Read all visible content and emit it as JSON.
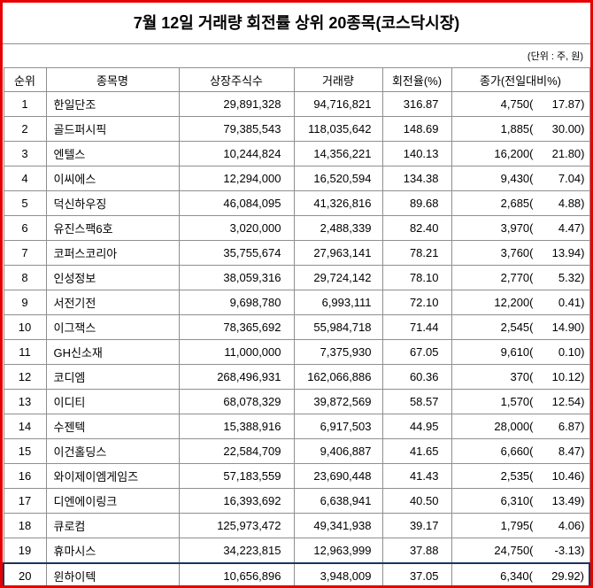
{
  "unit_note": "(단위 : 주, 원)",
  "colors": {
    "frame_border": "#e60000",
    "grid_line": "#8f8f8f",
    "selection_border": "#17375d",
    "text": "#000000",
    "background": "#ffffff"
  },
  "selection": {
    "selected_rank": 20
  },
  "chart_data": {
    "type": "table",
    "title": "7월 12일 거래량 회전률 상위 20종목(코스닥시장)",
    "columns": [
      "순위",
      "종목명",
      "상장주식수",
      "거래량",
      "회전율(%)",
      "종가(전일대비%)"
    ],
    "rows": [
      {
        "rank": 1,
        "name": "한일단조",
        "shares": "29,891,328",
        "volume": "94,716,821",
        "turnover": "316.87",
        "close": "4,750",
        "change": "17.87"
      },
      {
        "rank": 2,
        "name": "골드퍼시픽",
        "shares": "79,385,543",
        "volume": "118,035,642",
        "turnover": "148.69",
        "close": "1,885",
        "change": "30.00"
      },
      {
        "rank": 3,
        "name": "엔텔스",
        "shares": "10,244,824",
        "volume": "14,356,221",
        "turnover": "140.13",
        "close": "16,200",
        "change": "21.80"
      },
      {
        "rank": 4,
        "name": "이씨에스",
        "shares": "12,294,000",
        "volume": "16,520,594",
        "turnover": "134.38",
        "close": "9,430",
        "change": "7.04"
      },
      {
        "rank": 5,
        "name": "덕신하우징",
        "shares": "46,084,095",
        "volume": "41,326,816",
        "turnover": "89.68",
        "close": "2,685",
        "change": "4.88"
      },
      {
        "rank": 6,
        "name": "유진스팩6호",
        "shares": "3,020,000",
        "volume": "2,488,339",
        "turnover": "82.40",
        "close": "3,970",
        "change": "4.47"
      },
      {
        "rank": 7,
        "name": "코퍼스코리아",
        "shares": "35,755,674",
        "volume": "27,963,141",
        "turnover": "78.21",
        "close": "3,760",
        "change": "13.94"
      },
      {
        "rank": 8,
        "name": "인성정보",
        "shares": "38,059,316",
        "volume": "29,724,142",
        "turnover": "78.10",
        "close": "2,770",
        "change": "5.32"
      },
      {
        "rank": 9,
        "name": "서전기전",
        "shares": "9,698,780",
        "volume": "6,993,111",
        "turnover": "72.10",
        "close": "12,200",
        "change": "0.41"
      },
      {
        "rank": 10,
        "name": "이그잭스",
        "shares": "78,365,692",
        "volume": "55,984,718",
        "turnover": "71.44",
        "close": "2,545",
        "change": "14.90"
      },
      {
        "rank": 11,
        "name": "GH신소재",
        "shares": "11,000,000",
        "volume": "7,375,930",
        "turnover": "67.05",
        "close": "9,610",
        "change": "0.10"
      },
      {
        "rank": 12,
        "name": "코디엠",
        "shares": "268,496,931",
        "volume": "162,066,886",
        "turnover": "60.36",
        "close": "370",
        "change": "10.12"
      },
      {
        "rank": 13,
        "name": "이디티",
        "shares": "68,078,329",
        "volume": "39,872,569",
        "turnover": "58.57",
        "close": "1,570",
        "change": "12.54"
      },
      {
        "rank": 14,
        "name": "수젠텍",
        "shares": "15,388,916",
        "volume": "6,917,503",
        "turnover": "44.95",
        "close": "28,000",
        "change": "6.87"
      },
      {
        "rank": 15,
        "name": "이건홀딩스",
        "shares": "22,584,709",
        "volume": "9,406,887",
        "turnover": "41.65",
        "close": "6,660",
        "change": "8.47"
      },
      {
        "rank": 16,
        "name": "와이제이엠게임즈",
        "shares": "57,183,559",
        "volume": "23,690,448",
        "turnover": "41.43",
        "close": "2,535",
        "change": "10.46"
      },
      {
        "rank": 17,
        "name": "디엔에이링크",
        "shares": "16,393,692",
        "volume": "6,638,941",
        "turnover": "40.50",
        "close": "6,310",
        "change": "13.49"
      },
      {
        "rank": 18,
        "name": "큐로컴",
        "shares": "125,973,472",
        "volume": "49,341,938",
        "turnover": "39.17",
        "close": "1,795",
        "change": "4.06"
      },
      {
        "rank": 19,
        "name": "휴마시스",
        "shares": "34,223,815",
        "volume": "12,963,999",
        "turnover": "37.88",
        "close": "24,750",
        "change": "-3.13"
      },
      {
        "rank": 20,
        "name": "윈하이텍",
        "shares": "10,656,896",
        "volume": "3,948,009",
        "turnover": "37.05",
        "close": "6,340",
        "change": "29.92"
      }
    ]
  }
}
